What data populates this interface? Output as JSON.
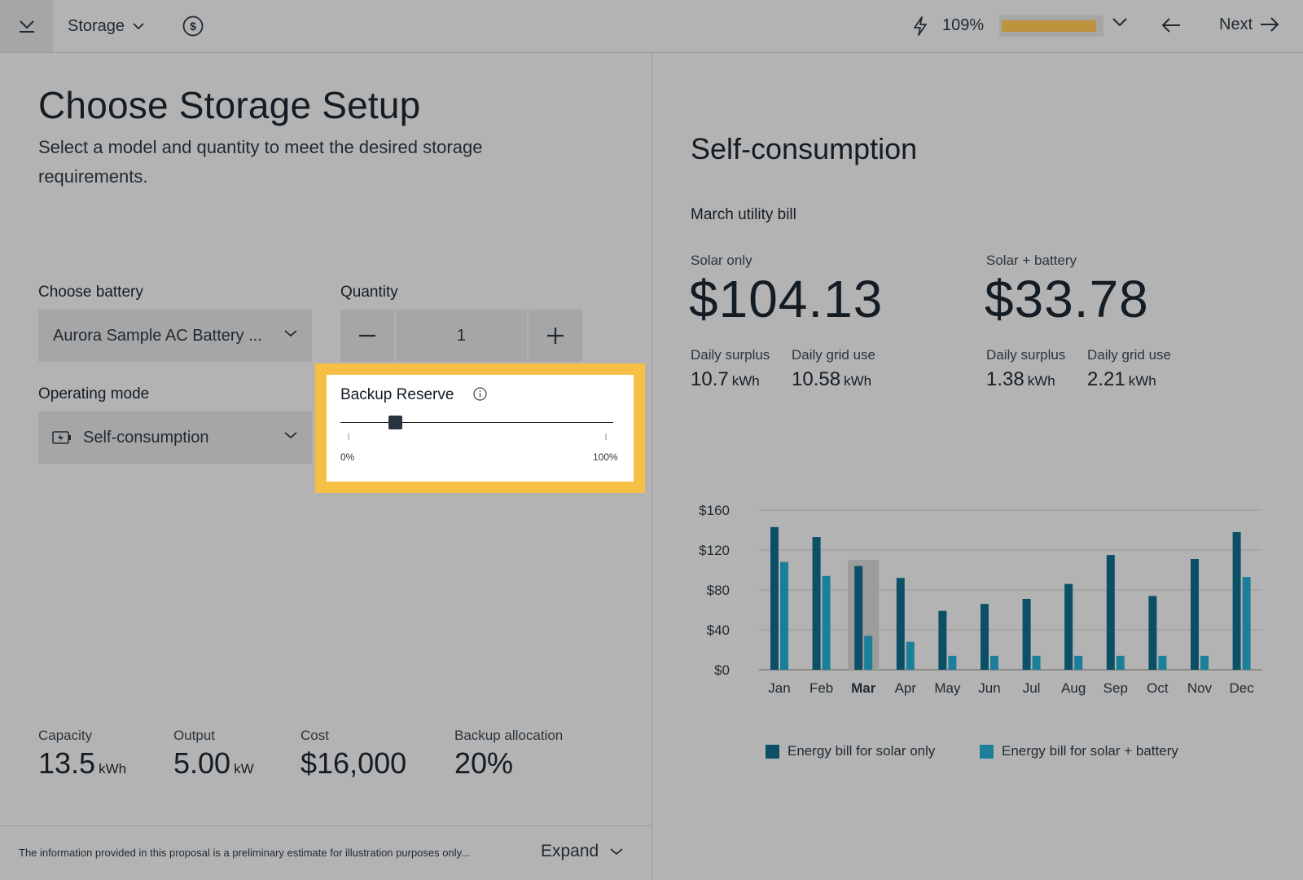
{
  "topbar": {
    "storage_label": "Storage",
    "offset_pct": "109%",
    "offset_fill": 0.95,
    "next_label": "Next"
  },
  "page": {
    "title": "Choose Storage Setup",
    "subtitle": "Select a model and quantity to meet the desired storage requirements."
  },
  "battery": {
    "label": "Choose battery",
    "value": "Aurora Sample AC Battery ..."
  },
  "quantity": {
    "label": "Quantity",
    "value": "1"
  },
  "mode": {
    "label": "Operating mode",
    "value": "Self-consumption"
  },
  "backup_reserve": {
    "label": "Backup Reserve",
    "value_fraction": 0.2,
    "min_label": "0%",
    "max_label": "100%"
  },
  "stats": [
    {
      "label": "Capacity",
      "value": "13.5",
      "unit": "kWh"
    },
    {
      "label": "Output",
      "value": "5.00",
      "unit": "kW"
    },
    {
      "label": "Cost",
      "value": "$16,000",
      "unit": ""
    },
    {
      "label": "Backup allocation",
      "value": "20%",
      "unit": ""
    }
  ],
  "footer": {
    "disclaimer": "The information provided in this proposal is a preliminary estimate for illustration purposes only...",
    "expand_label": "Expand"
  },
  "right": {
    "title": "Self-consumption",
    "bill_title": "March utility bill",
    "solar_only": {
      "label": "Solar only",
      "amount": "$104.13",
      "surplus_label": "Daily surplus",
      "surplus_value": "10.7",
      "grid_label": "Daily grid use",
      "grid_value": "10.58",
      "unit": "kWh"
    },
    "solar_battery": {
      "label": "Solar + battery",
      "amount": "$33.78",
      "surplus_label": "Daily surplus",
      "surplus_value": "1.38",
      "grid_label": "Daily grid use",
      "grid_value": "2.21",
      "unit": "kWh"
    }
  },
  "chart_data": {
    "type": "bar",
    "categories": [
      "Jan",
      "Feb",
      "Mar",
      "Apr",
      "May",
      "Jun",
      "Jul",
      "Aug",
      "Sep",
      "Oct",
      "Nov",
      "Dec"
    ],
    "highlighted_category": "Mar",
    "series": [
      {
        "name": "Energy bill for solar only",
        "color": "#0b5067",
        "values": [
          143,
          133,
          104,
          92,
          59,
          66,
          71,
          86,
          115,
          74,
          111,
          138
        ]
      },
      {
        "name": "Energy bill for solar + battery",
        "color": "#1c7f99",
        "values": [
          108,
          94,
          34,
          28,
          14,
          14,
          14,
          14,
          14,
          14,
          14,
          93
        ]
      }
    ],
    "y_ticks": [
      "$0",
      "$40",
      "$80",
      "$120",
      "$160"
    ],
    "ylim": [
      0,
      160
    ],
    "grid": true,
    "legend": "bottom"
  }
}
